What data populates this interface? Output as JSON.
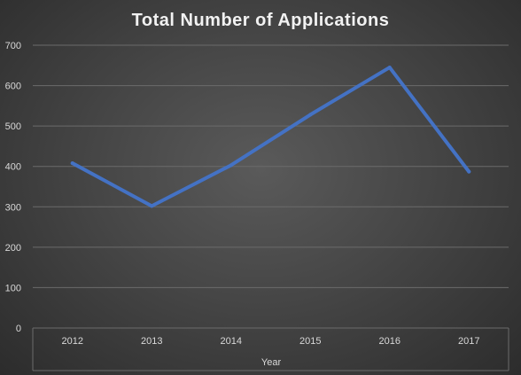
{
  "chart_data": {
    "type": "line",
    "title": "Total Number of Applications",
    "xlabel": "Year",
    "ylabel": "",
    "categories": [
      "2012",
      "2013",
      "2014",
      "2015",
      "2016",
      "2017"
    ],
    "series": [
      {
        "values": [
          408,
          302,
          403,
          528,
          645,
          387
        ]
      }
    ],
    "ylim": [
      0,
      700
    ],
    "yticks": [
      0,
      100,
      200,
      300,
      400,
      500,
      600,
      700
    ],
    "grid": true,
    "legend": "none",
    "colors": {
      "line": "#4472c4",
      "grid": "#6b6b6b",
      "text": "#d9d9d9",
      "title": "#f2f2f2"
    }
  }
}
